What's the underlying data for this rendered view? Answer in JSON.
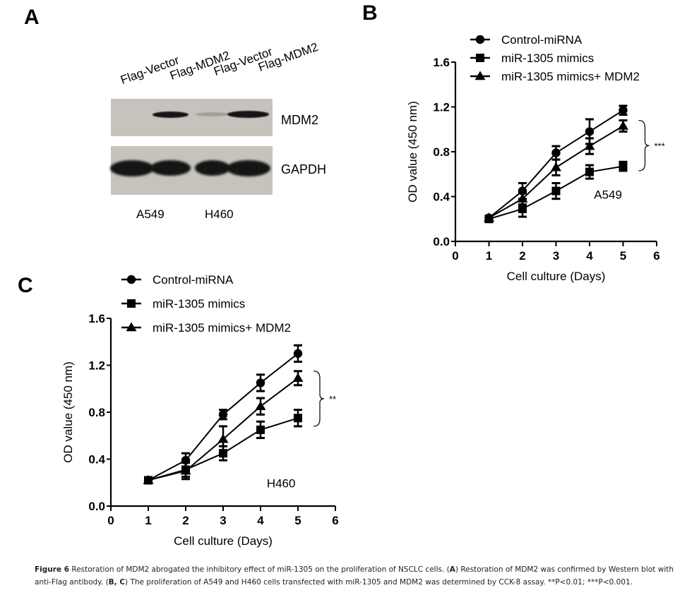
{
  "panels": {
    "a": {
      "letter": "A",
      "lane_labels": [
        "Flag-Vector",
        "Flag-MDM2",
        "Flag-Vector",
        "Flag-MDM2"
      ],
      "blot_rows": [
        {
          "label": "MDM2",
          "band_intensity": [
            0.0,
            0.85,
            0.05,
            1.0
          ]
        },
        {
          "label": "GAPDH",
          "band_intensity": [
            1.0,
            0.95,
            0.85,
            1.0
          ]
        }
      ],
      "cell_lines": [
        "A549",
        "H460"
      ]
    },
    "b": {
      "letter": "B"
    },
    "c": {
      "letter": "C"
    }
  },
  "chart_data": [
    {
      "type": "line",
      "panel": "B",
      "xlabel": "Cell culture (Days)",
      "ylabel": "OD value (450 nm)",
      "xlim": [
        0,
        6
      ],
      "ylim": [
        0,
        1.6
      ],
      "xticks": [
        "0",
        "1",
        "2",
        "3",
        "4",
        "5",
        "6"
      ],
      "yticks": [
        "0.0",
        "0.4",
        "0.8",
        "1.2",
        "1.6"
      ],
      "x": [
        1,
        2,
        3,
        4,
        5
      ],
      "annotation": "A549",
      "significance": "***",
      "legend_position": "top",
      "series": [
        {
          "name": "Control-miRNA",
          "marker": "circle",
          "values": [
            0.21,
            0.45,
            0.79,
            0.98,
            1.17
          ],
          "errors": [
            0.02,
            0.07,
            0.06,
            0.11,
            0.04
          ]
        },
        {
          "name": "miR-1305 mimics",
          "marker": "square",
          "values": [
            0.2,
            0.29,
            0.45,
            0.62,
            0.67
          ],
          "errors": [
            0.02,
            0.07,
            0.07,
            0.06,
            0.04
          ]
        },
        {
          "name": "miR-1305 mimics+ MDM2",
          "marker": "triangle",
          "values": [
            0.21,
            0.38,
            0.66,
            0.85,
            1.03
          ],
          "errors": [
            0.02,
            0.05,
            0.07,
            0.07,
            0.05
          ]
        }
      ]
    },
    {
      "type": "line",
      "panel": "C",
      "xlabel": "Cell culture (Days)",
      "ylabel": "OD value (450 nm)",
      "xlim": [
        0,
        6
      ],
      "ylim": [
        0,
        1.6
      ],
      "xticks": [
        "0",
        "1",
        "2",
        "3",
        "4",
        "5",
        "6"
      ],
      "yticks": [
        "0.0",
        "0.4",
        "0.8",
        "1.2",
        "1.6"
      ],
      "x": [
        1,
        2,
        3,
        4,
        5
      ],
      "annotation": "H460",
      "significance": "**",
      "legend_position": "top",
      "series": [
        {
          "name": "Control-miRNA",
          "marker": "circle",
          "values": [
            0.22,
            0.39,
            0.78,
            1.05,
            1.3
          ],
          "errors": [
            0.01,
            0.06,
            0.04,
            0.07,
            0.07
          ]
        },
        {
          "name": "miR-1305 mimics",
          "marker": "square",
          "values": [
            0.22,
            0.31,
            0.45,
            0.65,
            0.75
          ],
          "errors": [
            0.01,
            0.06,
            0.06,
            0.07,
            0.07
          ]
        },
        {
          "name": "miR-1305 mimics+ MDM2",
          "marker": "triangle",
          "values": [
            0.22,
            0.3,
            0.57,
            0.85,
            1.09
          ],
          "errors": [
            0.01,
            0.07,
            0.11,
            0.07,
            0.06
          ]
        }
      ]
    }
  ],
  "caption": {
    "figure_label": "Figure 6",
    "parts": [
      {
        "text": " Restoration of MDM2 abrogated the inhibitory effect of miR-1305 on the proliferation of NSCLC cells. (",
        "bold": false
      },
      {
        "text": "A",
        "bold": true
      },
      {
        "text": ") Restoration of MDM2 was confirmed by Western blot with anti-Flag antibody. (",
        "bold": false
      },
      {
        "text": "B, C",
        "bold": true
      },
      {
        "text": ") The proliferation of A549 and H460 cells transfected with miR-1305 and MDM2 was determined by CCK-8 assay. **P<0.01; ***P<0.001.",
        "bold": false
      }
    ]
  }
}
